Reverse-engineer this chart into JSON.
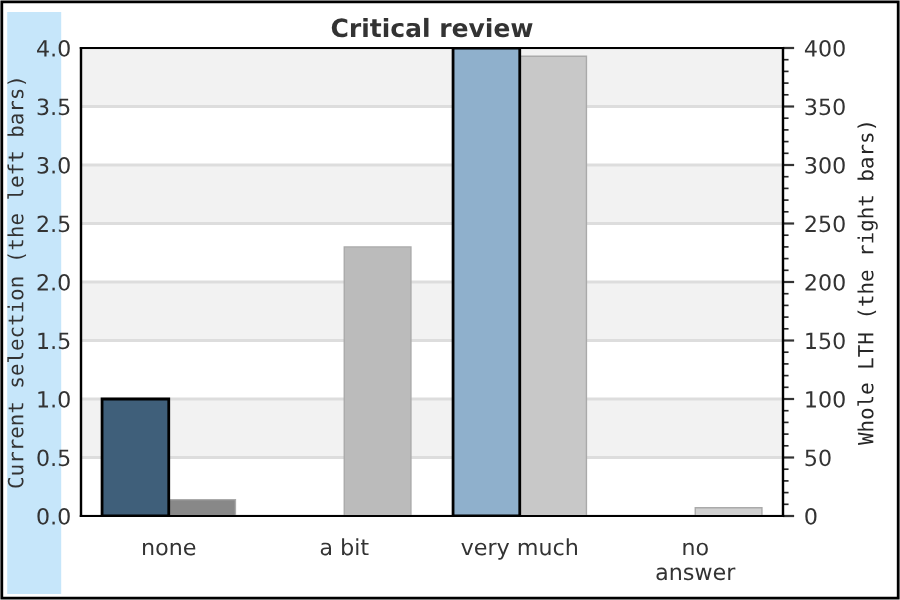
{
  "chart_data": {
    "type": "bar",
    "title": "Critical review",
    "ylabel": "Current selection (the left bars)",
    "y2label": "Whole LTH (the right bars)",
    "categories": [
      "none",
      "a bit",
      "very much",
      "no\nanswer"
    ],
    "series": [
      {
        "values": [
          1.0,
          0,
          4.0,
          0
        ],
        "colors": [
          "#3f5f7a",
          "#3f5f7a",
          "#8fb0cc",
          "#8fb0cc"
        ]
      },
      {
        "axis": "y2",
        "values": [
          14,
          230,
          393,
          7
        ],
        "colors": [
          "#888888",
          "#bbbbbb",
          "#c8c8c8",
          "#d0d0d0"
        ]
      }
    ],
    "ylim": [
      0,
      4
    ],
    "yticks": [
      {
        "value": 0,
        "label": "0.0"
      },
      {
        "value": 0.5,
        "label": "0.5"
      },
      {
        "value": 1,
        "label": "1.0"
      },
      {
        "value": 1.5,
        "label": "1.5"
      },
      {
        "value": 2,
        "label": "2.0"
      },
      {
        "value": 2.5,
        "label": "2.5"
      },
      {
        "value": 3,
        "label": "3.0"
      },
      {
        "value": 3.5,
        "label": "3.5"
      },
      {
        "value": 4,
        "label": "4.0"
      }
    ],
    "y2lim": [
      0,
      400
    ],
    "y2ticks": [
      0,
      50,
      100,
      150,
      200,
      250,
      300,
      350,
      400
    ],
    "grid": "y",
    "bands": [
      {
        "axis": "y",
        "from": 0.5,
        "to": 1.0,
        "color": "#f2f2f2"
      },
      {
        "axis": "y",
        "from": 1.5,
        "to": 2.0,
        "color": "#f2f2f2"
      },
      {
        "axis": "y",
        "from": 2.5,
        "to": 3.0,
        "color": "#f2f2f2"
      },
      {
        "axis": "y",
        "from": 3.5,
        "to": 4.0,
        "color": "#f2f2f2"
      }
    ]
  }
}
